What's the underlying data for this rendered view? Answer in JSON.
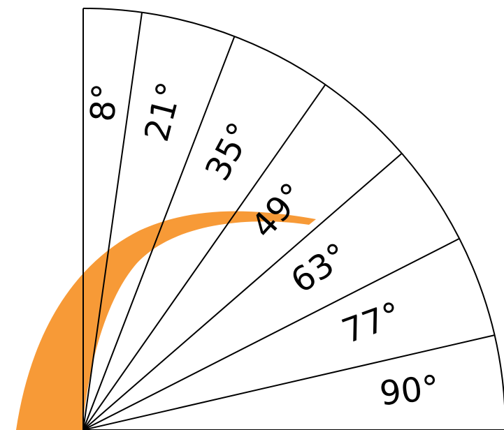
{
  "diagram": {
    "angle_labels": [
      "8°",
      "21°",
      "35°",
      "49°",
      "63°",
      "77°",
      "90°"
    ],
    "angles": [
      8,
      21,
      35,
      49,
      63,
      77,
      90
    ],
    "arc_color": "#f7952c",
    "line_color": "#000000"
  }
}
